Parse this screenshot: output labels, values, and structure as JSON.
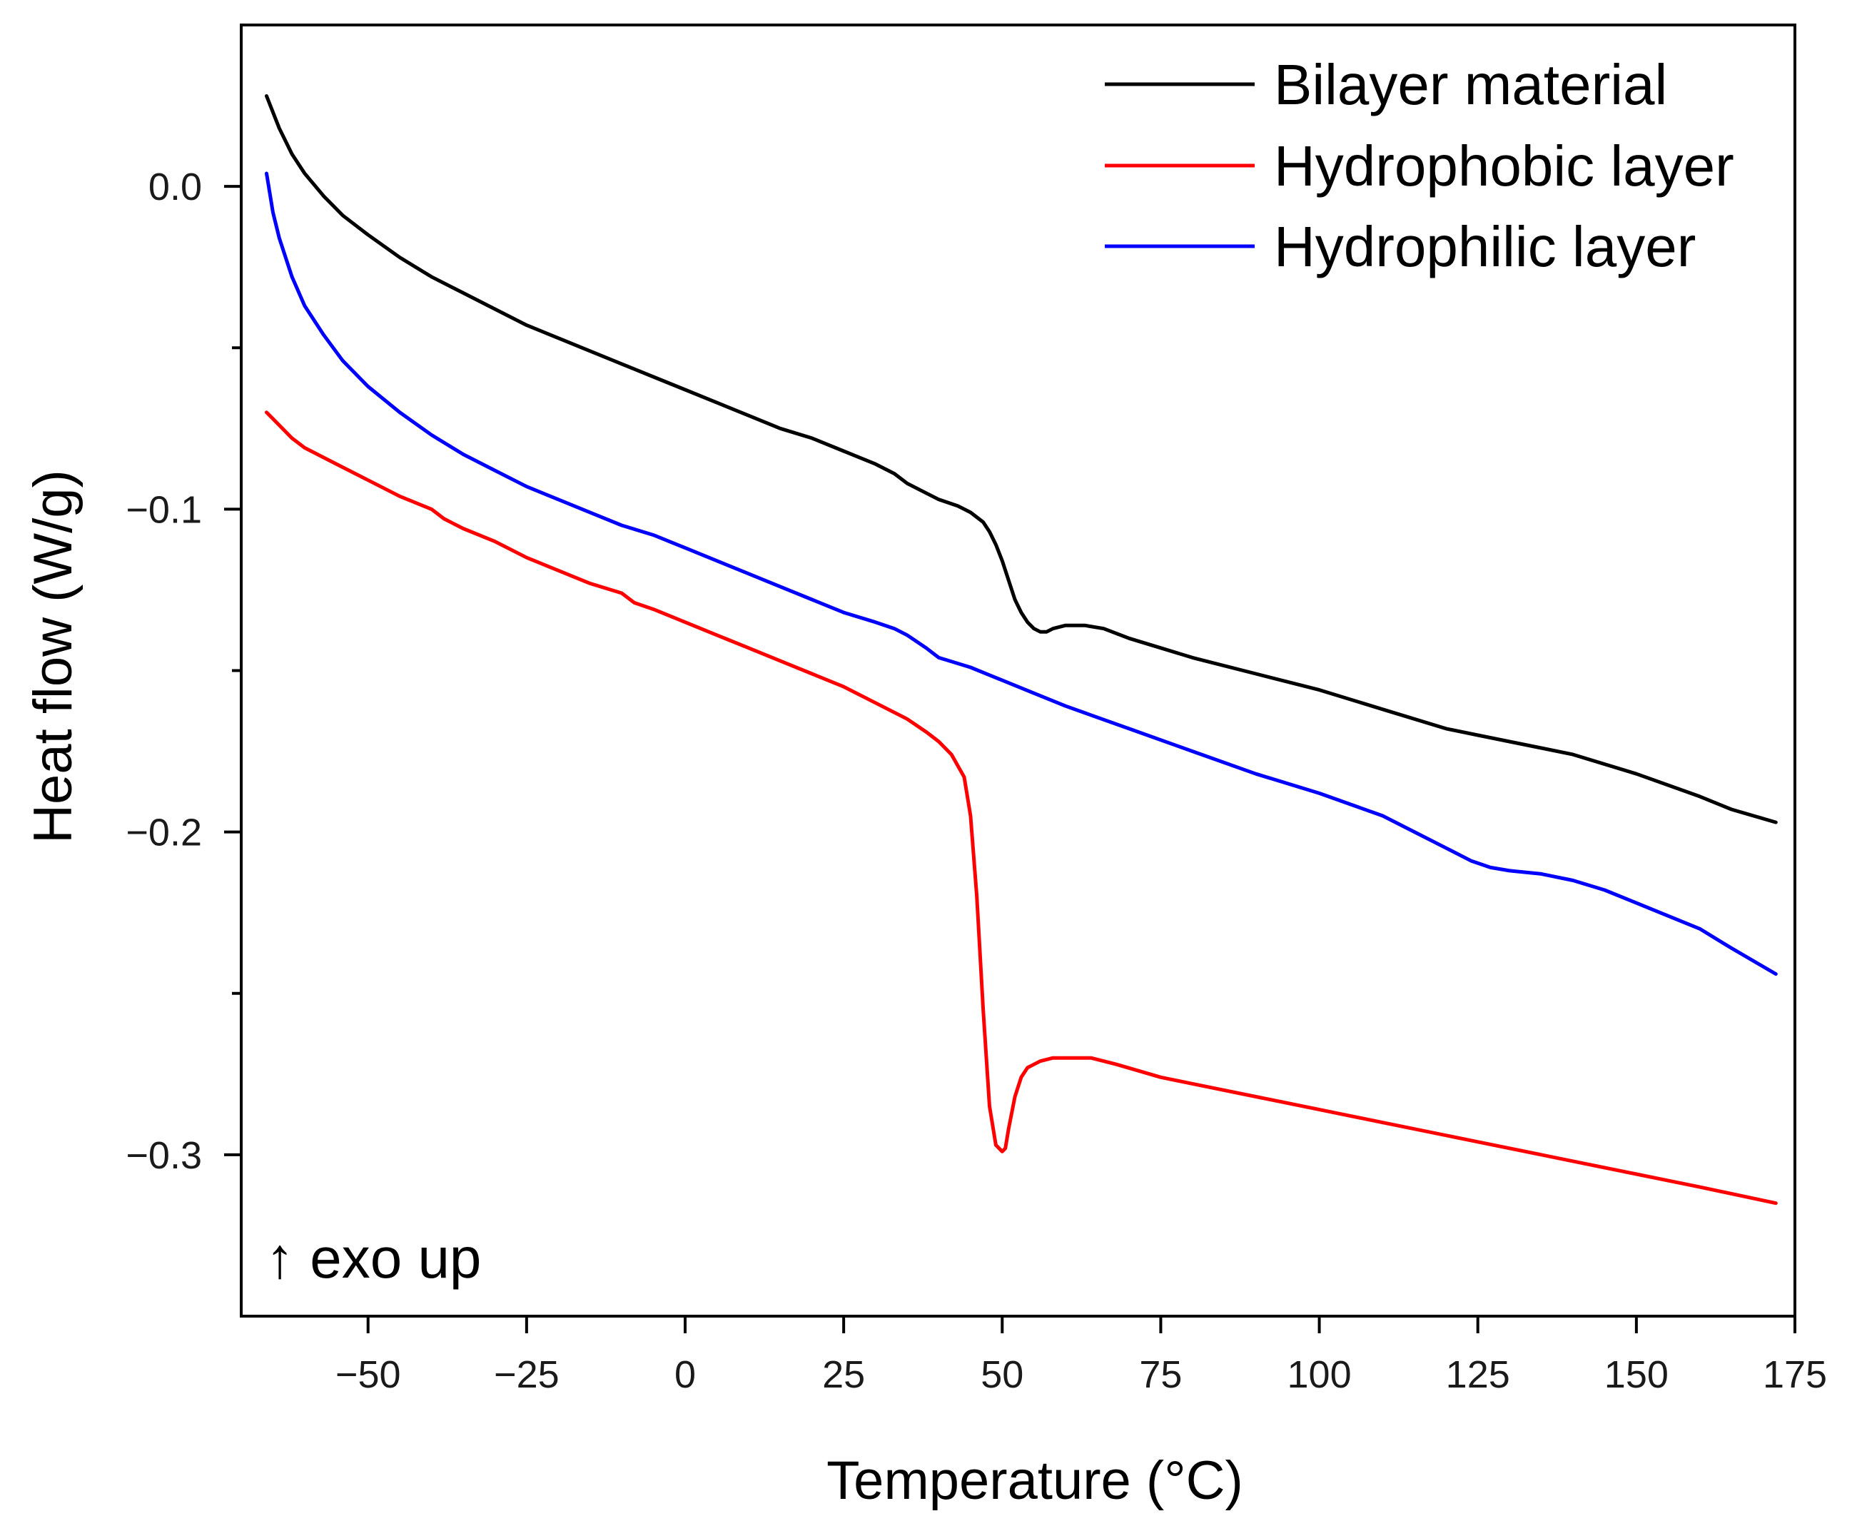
{
  "chart_data": {
    "type": "line",
    "title": "",
    "xlabel": "Temperature (°C)",
    "ylabel": "Heat flow (W/g)",
    "xlim": [
      -70,
      175
    ],
    "ylim": [
      -0.35,
      0.05
    ],
    "xticks": [
      -50,
      -25,
      0,
      25,
      50,
      75,
      100,
      125,
      150,
      175
    ],
    "xtick_labels": [
      "−50",
      "−25",
      "0",
      "25",
      "50",
      "75",
      "100",
      "125",
      "150",
      "175"
    ],
    "yticks": [
      0.0,
      -0.1,
      -0.2,
      -0.3
    ],
    "ytick_labels": [
      "0.0",
      "−0.1",
      "−0.2",
      "−0.3"
    ],
    "y_minor_ticks": [
      -0.05,
      -0.15,
      -0.25
    ],
    "grid": false,
    "legend_position": "top-right",
    "annotation": "↑ exo up",
    "series": [
      {
        "name": "Bilayer material",
        "color": "#000000",
        "x": [
          -66,
          -64,
          -62,
          -60,
          -57,
          -54,
          -50,
          -45,
          -40,
          -35,
          -30,
          -25,
          -20,
          -15,
          -10,
          -5,
          0,
          5,
          10,
          15,
          20,
          25,
          30,
          33,
          35,
          38,
          40,
          43,
          45,
          47,
          48,
          49,
          50,
          51,
          52,
          53,
          54,
          55,
          56,
          57,
          58,
          60,
          63,
          66,
          70,
          75,
          80,
          90,
          100,
          110,
          120,
          125,
          130,
          135,
          140,
          150,
          160,
          165,
          172
        ],
        "values": [
          0.028,
          0.018,
          0.01,
          0.004,
          -0.003,
          -0.009,
          -0.015,
          -0.022,
          -0.028,
          -0.033,
          -0.038,
          -0.043,
          -0.047,
          -0.051,
          -0.055,
          -0.059,
          -0.063,
          -0.067,
          -0.071,
          -0.075,
          -0.078,
          -0.082,
          -0.086,
          -0.089,
          -0.092,
          -0.095,
          -0.097,
          -0.099,
          -0.101,
          -0.104,
          -0.107,
          -0.111,
          -0.116,
          -0.122,
          -0.128,
          -0.132,
          -0.135,
          -0.137,
          -0.138,
          -0.138,
          -0.137,
          -0.136,
          -0.136,
          -0.137,
          -0.14,
          -0.143,
          -0.146,
          -0.151,
          -0.156,
          -0.162,
          -0.168,
          -0.17,
          -0.172,
          -0.174,
          -0.176,
          -0.182,
          -0.189,
          -0.193,
          -0.197
        ]
      },
      {
        "name": "Hydrophobic layer",
        "color": "#ff0000",
        "x": [
          -66,
          -64,
          -62,
          -60,
          -55,
          -50,
          -45,
          -40,
          -38,
          -35,
          -30,
          -25,
          -20,
          -15,
          -10,
          -8,
          -5,
          0,
          5,
          10,
          15,
          20,
          25,
          30,
          35,
          38,
          40,
          42,
          44,
          45,
          46,
          47,
          48,
          49,
          50,
          50.5,
          51,
          52,
          53,
          54,
          56,
          58,
          60,
          64,
          68,
          75,
          80,
          90,
          100,
          110,
          125,
          140,
          150,
          160,
          172
        ],
        "values": [
          -0.07,
          -0.074,
          -0.078,
          -0.081,
          -0.086,
          -0.091,
          -0.096,
          -0.1,
          -0.103,
          -0.106,
          -0.11,
          -0.115,
          -0.119,
          -0.123,
          -0.126,
          -0.129,
          -0.131,
          -0.135,
          -0.139,
          -0.143,
          -0.147,
          -0.151,
          -0.155,
          -0.16,
          -0.165,
          -0.169,
          -0.172,
          -0.176,
          -0.183,
          -0.195,
          -0.22,
          -0.255,
          -0.285,
          -0.297,
          -0.299,
          -0.298,
          -0.292,
          -0.282,
          -0.276,
          -0.273,
          -0.271,
          -0.27,
          -0.27,
          -0.27,
          -0.272,
          -0.276,
          -0.278,
          -0.282,
          -0.286,
          -0.29,
          -0.296,
          -0.302,
          -0.306,
          -0.31,
          -0.315
        ]
      },
      {
        "name": "Hydrophilic layer",
        "color": "#0000ff",
        "x": [
          -66,
          -65,
          -64,
          -62,
          -60,
          -57,
          -54,
          -50,
          -45,
          -40,
          -35,
          -30,
          -25,
          -20,
          -15,
          -10,
          -5,
          0,
          5,
          10,
          15,
          20,
          25,
          30,
          33,
          35,
          38,
          40,
          45,
          50,
          55,
          60,
          70,
          80,
          90,
          100,
          110,
          115,
          120,
          124,
          127,
          130,
          135,
          140,
          145,
          150,
          160,
          165,
          172
        ],
        "values": [
          0.004,
          -0.008,
          -0.016,
          -0.028,
          -0.037,
          -0.046,
          -0.054,
          -0.062,
          -0.07,
          -0.077,
          -0.083,
          -0.088,
          -0.093,
          -0.097,
          -0.101,
          -0.105,
          -0.108,
          -0.112,
          -0.116,
          -0.12,
          -0.124,
          -0.128,
          -0.132,
          -0.135,
          -0.137,
          -0.139,
          -0.143,
          -0.146,
          -0.149,
          -0.153,
          -0.157,
          -0.161,
          -0.168,
          -0.175,
          -0.182,
          -0.188,
          -0.195,
          -0.2,
          -0.205,
          -0.209,
          -0.211,
          -0.212,
          -0.213,
          -0.215,
          -0.218,
          -0.222,
          -0.23,
          -0.236,
          -0.244
        ]
      }
    ]
  }
}
